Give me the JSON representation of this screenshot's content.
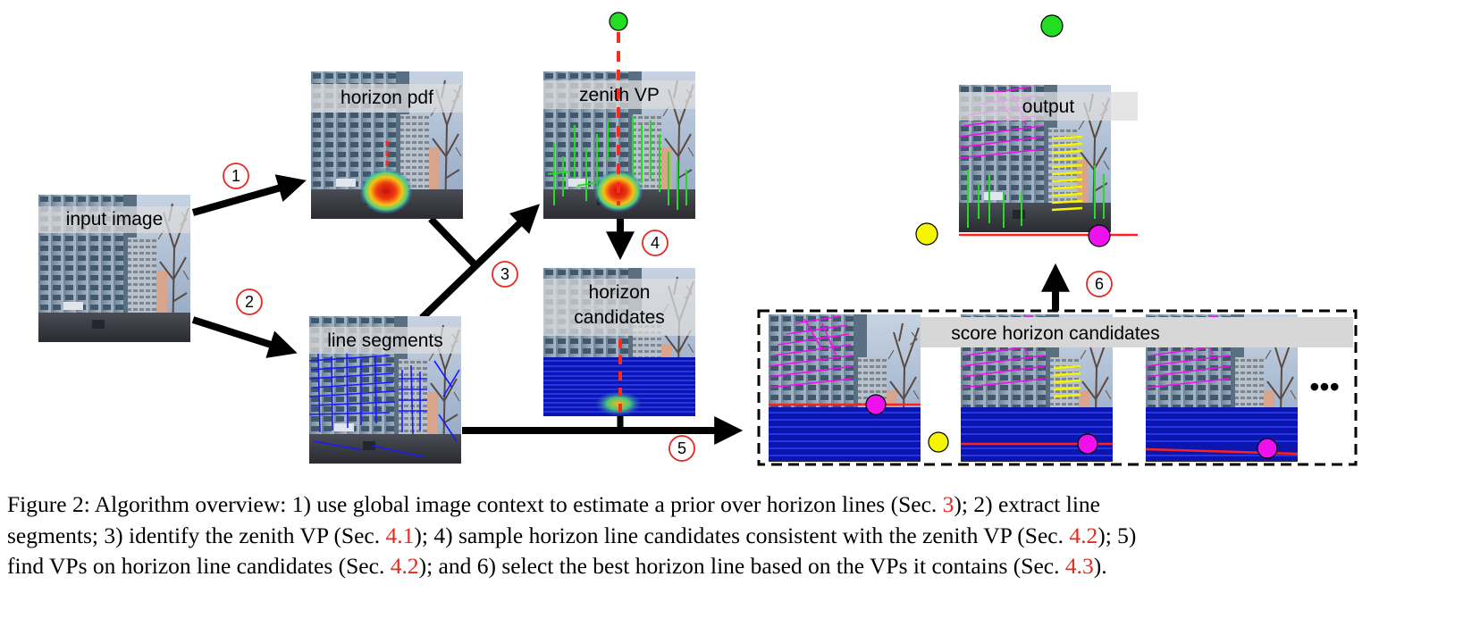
{
  "panels": {
    "input": "input image",
    "horizon_pdf": "horizon pdf",
    "zenith_vp": "zenith VP",
    "horizon_candidates_line1": "horizon",
    "horizon_candidates_line2": "candidates",
    "line_segments": "line segments",
    "output": "output",
    "score": "score horizon candidates"
  },
  "steps": [
    "1",
    "2",
    "3",
    "4",
    "5",
    "6"
  ],
  "ellipsis": "•••",
  "colors": {
    "step_circle": "#e8281e",
    "vp_zenith": "#22dd22",
    "vp_yellow": "#f5f500",
    "vp_magenta": "#ee11ee",
    "segments_blue": "#1a1aff",
    "reference": "#e8281e"
  },
  "caption": {
    "l1_a": "Figure 2:  Algorithm overview:  1) use global image context to estimate a prior over horizon lines (Sec. ",
    "l1_ref": "3",
    "l1_b": "); 2) extract line",
    "l2_a": "segments; 3) identify the zenith VP (Sec. ",
    "l2_ref1": "4.1",
    "l2_b": "); 4) sample horizon line candidates consistent with the zenith VP (Sec. ",
    "l2_ref2": "4.2",
    "l2_c": "); 5)",
    "l3_a": "find VPs on horizon line candidates (Sec. ",
    "l3_ref1": "4.2",
    "l3_b": "); and 6) select the best horizon line based on the VPs it contains (Sec. ",
    "l3_ref2": "4.3",
    "l3_c": ")."
  }
}
